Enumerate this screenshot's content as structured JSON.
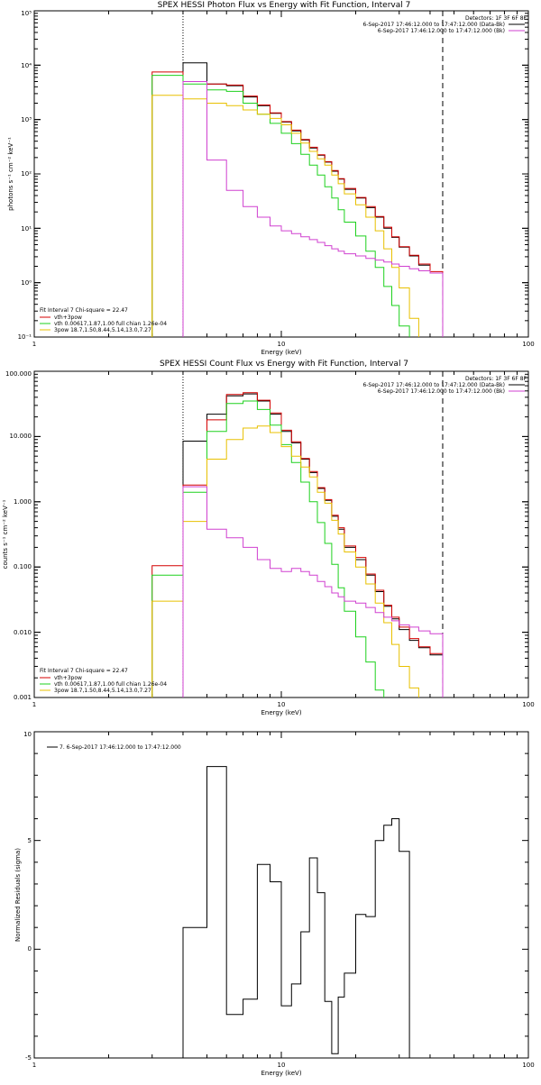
{
  "chart_data": [
    {
      "type": "line",
      "title": "SPEX HESSI Photon Flux vs Energy with Fit Function, Interval 7",
      "xlabel": "Energy (keV)",
      "ylabel": "photons s⁻¹ cm⁻² keV⁻¹",
      "xscale": "log",
      "yscale": "log",
      "xlim": [
        1,
        100
      ],
      "ylim": [
        0.1,
        100000
      ],
      "x_tick_labels": [
        "1",
        "10",
        "100"
      ],
      "y_tick_labels": [
        "10⁻¹",
        "10⁰",
        "10¹",
        "10²",
        "10³",
        "10⁴",
        "10⁵"
      ],
      "fit_range_keV": [
        4.0,
        45.0
      ],
      "bin_edges_keV": [
        3.0,
        4.0,
        5.0,
        6.0,
        7.0,
        8.0,
        9.0,
        10.0,
        11.0,
        12.0,
        13.0,
        14.0,
        15.0,
        16.0,
        17.0,
        18.0,
        20.0,
        22.0,
        24.0,
        26.0,
        28.0,
        30.0,
        33.0,
        36.0,
        40.0,
        45.0
      ],
      "series": [
        {
          "color": "#000000",
          "values": [
            null,
            11000,
            4500,
            4200,
            2600,
            1800,
            1300,
            900,
            620,
            420,
            300,
            220,
            165,
            112,
            80,
            52,
            36,
            24,
            16,
            10,
            6.8,
            4.5,
            3.1,
            2.1,
            1.5
          ]
        },
        {
          "name": "vth+3pow",
          "color": "#d40000",
          "values": [
            7500,
            5000,
            4500,
            4300,
            2700,
            1850,
            1330,
            920,
            640,
            430,
            310,
            225,
            168,
            115,
            82,
            54,
            37,
            25,
            16.5,
            10.5,
            7.0,
            4.6,
            3.2,
            2.2,
            1.6
          ]
        },
        {
          "name": "vth 0.00617,1.87,1.00  full chian 1.26e-04",
          "color": "#1ed11e",
          "values": [
            6500,
            4500,
            3500,
            3300,
            2000,
            1250,
            850,
            560,
            360,
            230,
            145,
            95,
            58,
            36,
            22,
            13,
            7.2,
            3.8,
            1.9,
            0.85,
            0.38,
            0.16,
            null,
            null,
            null
          ]
        },
        {
          "name": "3pow 18.7,1.50,8.44,5.14,13.0,7.27",
          "color": "#e8c000",
          "values": [
            2800,
            2400,
            2000,
            1800,
            1500,
            1250,
            1050,
            800,
            560,
            370,
            260,
            190,
            145,
            95,
            66,
            43,
            27,
            16,
            9.0,
            4.2,
            1.9,
            0.8,
            0.22,
            null,
            null
          ]
        },
        {
          "color": "#d040d0",
          "values": [
            null,
            5000,
            180,
            50,
            25,
            16,
            11,
            9.0,
            8.0,
            7.0,
            6.2,
            5.5,
            4.8,
            4.2,
            3.8,
            3.4,
            3.1,
            2.8,
            2.6,
            2.4,
            2.2,
            2.0,
            1.8,
            1.65,
            1.5
          ]
        }
      ],
      "legend_header": {
        "lines": [
          "Detectors: 1F 3F 6F 8F",
          "6-Sep-2017 17:46:12.000 to 17:47:12.000 (Data-Bk)",
          "6-Sep-2017 17:46:12.000 to 17:47:12.000 (Bk)"
        ],
        "colors": [
          "#000000",
          "#d040d0"
        ]
      },
      "fit_info": "Fit Interval 7   Chi-square = 22.47"
    },
    {
      "type": "line",
      "title": "SPEX HESSI Count Flux vs Energy with Fit Function, Interval 7",
      "xlabel": "Energy (keV)",
      "ylabel": "counts s⁻¹ cm⁻² keV⁻¹",
      "xscale": "log",
      "yscale": "log",
      "xlim": [
        1,
        100
      ],
      "ylim": [
        0.001,
        100
      ],
      "x_tick_labels": [
        "1",
        "10",
        "100"
      ],
      "y_tick_labels": [
        "0.001",
        "0.010",
        "0.100",
        "1.000",
        "10.000",
        "100.000"
      ],
      "fit_range_keV": [
        4.0,
        45.0
      ],
      "bin_edges_keV": [
        3.0,
        4.0,
        5.0,
        6.0,
        7.0,
        8.0,
        9.0,
        10.0,
        11.0,
        12.0,
        13.0,
        14.0,
        15.0,
        16.0,
        17.0,
        18.0,
        20.0,
        22.0,
        24.0,
        26.0,
        28.0,
        30.0,
        33.0,
        36.0,
        40.0,
        45.0
      ],
      "series": [
        {
          "color": "#000000",
          "values": [
            null,
            8.5,
            22,
            42,
            45,
            35,
            22,
            12,
            8.0,
            4.5,
            2.8,
            1.6,
            1.05,
            0.6,
            0.38,
            0.2,
            0.13,
            0.075,
            0.042,
            0.025,
            0.016,
            0.011,
            0.0075,
            0.0058,
            0.0045
          ]
        },
        {
          "name": "vth+3pow",
          "color": "#d40000",
          "values": [
            0.105,
            1.8,
            18,
            44,
            47,
            36,
            23,
            12.5,
            8.3,
            4.6,
            2.9,
            1.65,
            1.08,
            0.62,
            0.4,
            0.21,
            0.14,
            0.078,
            0.044,
            0.026,
            0.017,
            0.012,
            0.008,
            0.006,
            0.0047
          ]
        },
        {
          "name": "vth 0.00617,1.87,1.00  full chian 1.26e-04",
          "color": "#1ed11e",
          "values": [
            0.075,
            1.4,
            12,
            32,
            35,
            26,
            15,
            7.5,
            4.0,
            2.0,
            1.0,
            0.48,
            0.23,
            0.11,
            0.048,
            0.021,
            0.0085,
            0.0035,
            0.0013,
            null,
            null,
            null,
            null,
            null,
            null
          ]
        },
        {
          "name": "3pow 18.7,1.50,8.44,5.14,13.0,7.27",
          "color": "#e8c000",
          "values": [
            0.03,
            0.5,
            4.5,
            9.0,
            13.5,
            14.5,
            11.5,
            7.0,
            5.0,
            3.4,
            2.4,
            1.4,
            0.95,
            0.52,
            0.32,
            0.17,
            0.1,
            0.055,
            0.028,
            0.014,
            0.0065,
            0.003,
            0.0014,
            null,
            null
          ]
        },
        {
          "color": "#d040d0",
          "values": [
            null,
            1.7,
            0.38,
            0.28,
            0.2,
            0.13,
            0.095,
            0.085,
            0.095,
            0.085,
            0.075,
            0.06,
            0.05,
            0.04,
            0.035,
            0.03,
            0.028,
            0.024,
            0.02,
            0.017,
            0.015,
            0.013,
            0.012,
            0.0105,
            0.0095
          ]
        }
      ],
      "legend_header": {
        "lines": [
          "Detectors: 1F 3F 6F 8F",
          "6-Sep-2017 17:46:12.000 to 17:47:12.000 (Data-Bk)",
          "6-Sep-2017 17:46:12.000 to 17:47:12.000 (Bk)"
        ],
        "colors": [
          "#000000",
          "#d040d0"
        ]
      },
      "fit_info": "Fit Interval 7   Chi-square = 22.47"
    },
    {
      "type": "line",
      "title": "",
      "xlabel": "Energy (keV)",
      "ylabel": "Normalized Residuals (sigma)",
      "xscale": "log",
      "yscale": "linear",
      "xlim": [
        1,
        100
      ],
      "ylim": [
        -5,
        10
      ],
      "x_tick_labels": [
        "1",
        "10",
        "100"
      ],
      "y_tick_labels": [
        "-5",
        "0",
        "5",
        "10"
      ],
      "bin_edges_keV": [
        4.0,
        5.0,
        6.0,
        7.0,
        8.0,
        9.0,
        10.0,
        11.0,
        12.0,
        13.0,
        14.0,
        15.0,
        16.0,
        17.0,
        18.0,
        20.0,
        22.0,
        24.0,
        26.0,
        28.0,
        30.0,
        33.0,
        36.0,
        40.0,
        45.0
      ],
      "series": [
        {
          "name": "7.  6-Sep-2017 17:46:12.000 to 17:47:12.000",
          "color": "#000000",
          "values": [
            1.0,
            8.4,
            -3.0,
            -2.3,
            3.9,
            3.1,
            -2.6,
            -1.6,
            0.8,
            4.2,
            2.6,
            -2.4,
            -4.8,
            -2.2,
            -1.1,
            1.6,
            1.5,
            5.0,
            5.7,
            6.0,
            4.5,
            null,
            null,
            null
          ]
        }
      ]
    }
  ]
}
